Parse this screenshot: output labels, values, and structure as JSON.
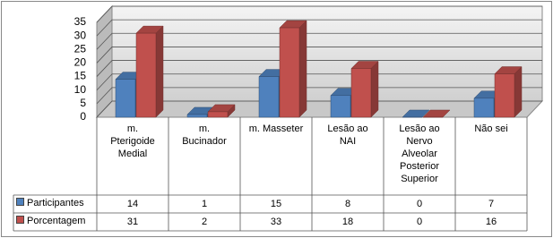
{
  "chart_data": {
    "type": "bar3d",
    "categories": [
      "m. Pterigoide Medial",
      "m. Bucinador",
      "m. Masseter",
      "Lesão ao NAI",
      "Lesão ao Nervo Alveolar Posterior Superior",
      "Não sei"
    ],
    "series": [
      {
        "name": "Participantes",
        "color": "#4f81bd",
        "values": [
          14,
          1,
          15,
          8,
          0,
          7
        ]
      },
      {
        "name": "Porcentagem",
        "color": "#c0504d",
        "values": [
          31,
          2,
          33,
          18,
          0,
          16
        ]
      }
    ],
    "ylim": [
      0,
      35
    ],
    "yticks": [
      0,
      5,
      10,
      15,
      20,
      25,
      30,
      35
    ],
    "grid": true,
    "data_table": true
  }
}
